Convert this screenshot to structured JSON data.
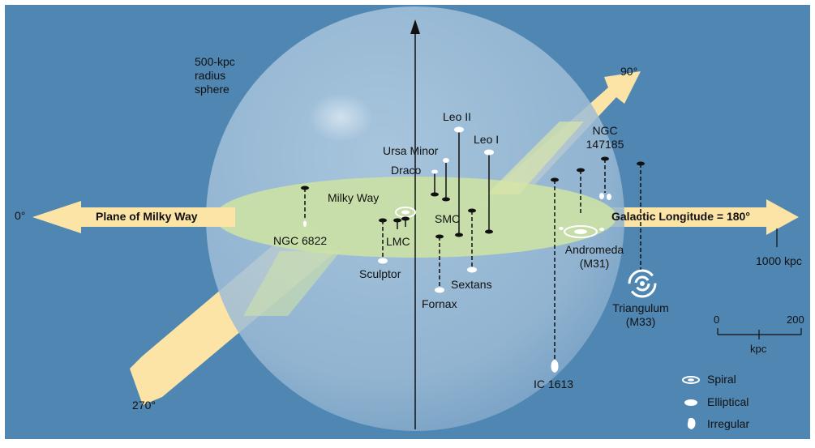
{
  "diagram": {
    "sphere_label": "500-kpc\nradius\nsphere",
    "plane_label": "Plane of Milky Way",
    "longitude_label": "Galactic Longitude = 180°",
    "angles": {
      "a0": "0°",
      "a90": "90°",
      "a270": "270°"
    },
    "distance_label": "1000 kpc",
    "milky_way": "Milky Way",
    "galaxies": {
      "ngc6822": "NGC 6822",
      "lmc": "LMC",
      "smc": "SMC",
      "sculptor": "Sculptor",
      "fornax": "Fornax",
      "sextans": "Sextans",
      "leo1": "Leo I",
      "leo2": "Leo II",
      "ursa_minor": "Ursa Minor",
      "draco": "Draco",
      "ngc147185": "NGC\n147185",
      "andromeda": "Andromeda\n(M31)",
      "triangulum": "Triangulum\n(M33)",
      "ic1613": "IC 1613"
    },
    "scale": {
      "min": "0",
      "max": "200",
      "unit": "kpc"
    },
    "legend": {
      "spiral": "Spiral",
      "elliptical": "Elliptical",
      "irregular": "Irregular"
    },
    "colors": {
      "background": "#4f86b2",
      "sphere": "#a9c5dc",
      "plane": "#c9dfa8",
      "arrow": "#fbe4a6"
    }
  }
}
